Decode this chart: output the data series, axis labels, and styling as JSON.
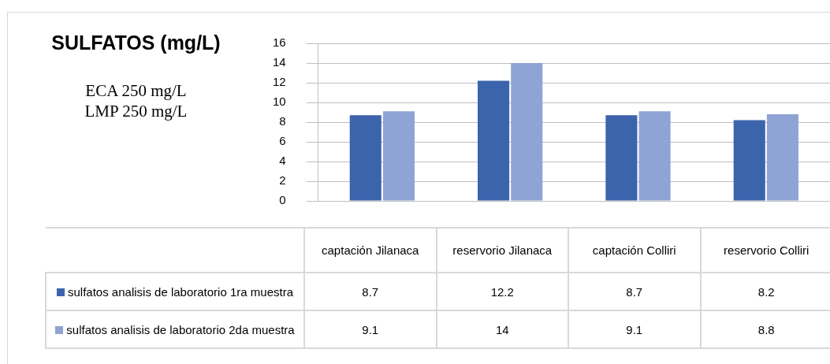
{
  "chart_data": {
    "type": "bar",
    "title": "SULFATOS (mg/L)",
    "annotations": [
      "ECA 250 mg/L",
      "LMP 250 mg/L"
    ],
    "categories": [
      "captación Jilanaca",
      "reservorio Jilanaca",
      "captación Colliri",
      "reservorio Colliri"
    ],
    "series": [
      {
        "name": "sulfatos analisis de laboratorio 1ra muestra",
        "color": "#3c64ac",
        "values": [
          8.7,
          12.2,
          8.7,
          8.2
        ]
      },
      {
        "name": "sulfatos analisis de laboratorio 2da muestra",
        "color": "#8fa3d4",
        "values": [
          9.1,
          14,
          9.1,
          8.8
        ]
      }
    ],
    "ylim": [
      0,
      16
    ],
    "yticks": [
      0,
      2,
      4,
      6,
      8,
      10,
      12,
      14,
      16
    ],
    "grid": "y",
    "legend": "bottom",
    "data_labels": true
  }
}
